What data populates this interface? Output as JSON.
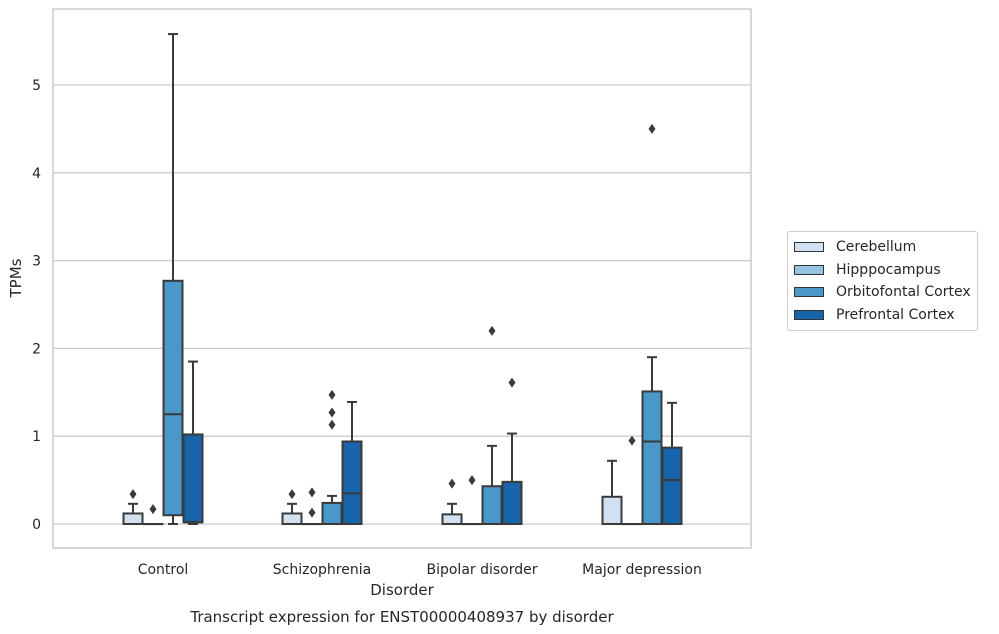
{
  "chart_data": {
    "type": "box",
    "title": "Transcript expression for ENST00000408937 by disorder",
    "xlabel": "Disorder",
    "ylabel": "TPMs",
    "ylim": [
      -0.27,
      5.87
    ],
    "yticks": [
      0,
      1,
      2,
      3,
      4,
      5
    ],
    "grid": true,
    "legend_position": "right",
    "categories": [
      "Control",
      "Schizophrenia",
      "Bipolar disorder",
      "Major depression"
    ],
    "series": [
      {
        "name": "Cerebellum",
        "color": "#d0e1f2",
        "boxes": [
          {
            "q1": 0,
            "median": 0,
            "q3": 0.12,
            "whislo": 0,
            "whishi": 0.23,
            "fliers": [
              0.34
            ]
          },
          {
            "q1": 0,
            "median": 0,
            "q3": 0.12,
            "whislo": 0,
            "whishi": 0.23,
            "fliers": [
              0.34
            ]
          },
          {
            "q1": 0,
            "median": 0,
            "q3": 0.11,
            "whislo": 0,
            "whishi": 0.23,
            "fliers": [
              0.46
            ]
          },
          {
            "q1": 0,
            "median": 0,
            "q3": 0.31,
            "whislo": 0,
            "whishi": 0.72,
            "fliers": []
          }
        ]
      },
      {
        "name": "Hipppocampus",
        "color": "#94c4df",
        "boxes": [
          {
            "q1": 0,
            "median": 0,
            "q3": 0,
            "whislo": 0,
            "whishi": 0,
            "fliers": [
              0.17
            ]
          },
          {
            "q1": 0,
            "median": 0,
            "q3": 0,
            "whislo": 0,
            "whishi": 0,
            "fliers": [
              0.13,
              0.36
            ]
          },
          {
            "q1": 0,
            "median": 0,
            "q3": 0,
            "whislo": 0,
            "whishi": 0,
            "fliers": [
              0.5
            ]
          },
          {
            "q1": 0,
            "median": 0,
            "q3": 0,
            "whislo": 0,
            "whishi": 0,
            "fliers": [
              0.95
            ]
          }
        ]
      },
      {
        "name": "Orbitofontal Cortex",
        "color": "#4a98c9",
        "boxes": [
          {
            "q1": 0.1,
            "median": 1.25,
            "q3": 2.77,
            "whislo": 0,
            "whishi": 5.58,
            "fliers": []
          },
          {
            "q1": 0,
            "median": 0,
            "q3": 0.24,
            "whislo": 0,
            "whishi": 0.32,
            "fliers": [
              1.13,
              1.27,
              1.47
            ]
          },
          {
            "q1": 0,
            "median": 0,
            "q3": 0.43,
            "whislo": 0,
            "whishi": 0.89,
            "fliers": [
              2.2
            ]
          },
          {
            "q1": 0,
            "median": 0.94,
            "q3": 1.51,
            "whislo": 0,
            "whishi": 1.9,
            "fliers": [
              4.5
            ]
          }
        ]
      },
      {
        "name": "Prefrontal Cortex",
        "color": "#1764ab",
        "boxes": [
          {
            "q1": 0.02,
            "median": 0.02,
            "q3": 1.02,
            "whislo": 0,
            "whishi": 1.85,
            "fliers": []
          },
          {
            "q1": 0,
            "median": 0.35,
            "q3": 0.94,
            "whislo": 0,
            "whishi": 1.39,
            "fliers": []
          },
          {
            "q1": 0,
            "median": 0,
            "q3": 0.48,
            "whislo": 0,
            "whishi": 1.03,
            "fliers": [
              1.61
            ]
          },
          {
            "q1": 0,
            "median": 0.5,
            "q3": 0.87,
            "whislo": 0,
            "whishi": 1.38,
            "fliers": []
          }
        ]
      }
    ]
  }
}
